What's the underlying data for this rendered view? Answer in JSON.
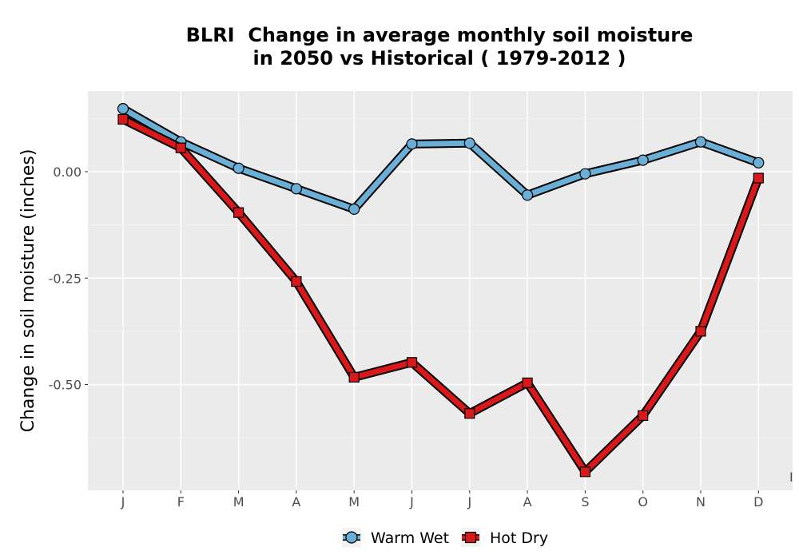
{
  "chart_data": {
    "type": "line",
    "title_line1": "BLRI  Change in average monthly soil moisture",
    "title_line2": "in 2050 vs Historical ( 1979-2012 )",
    "xlabel": "",
    "ylabel": "Change in soil moisture (inches)",
    "categories": [
      "J",
      "F",
      "M",
      "A",
      "M",
      "J",
      "J",
      "A",
      "S",
      "O",
      "N",
      "D"
    ],
    "y_ticks": [
      0.0,
      -0.25,
      -0.5
    ],
    "y_tick_labels": [
      "0.00",
      "-0.25",
      "-0.50"
    ],
    "ylim": [
      -0.75,
      0.19
    ],
    "grid": true,
    "legend_position": "bottom",
    "series": [
      {
        "name": "Warm Wet",
        "marker": "circle",
        "color": "#6baed6",
        "values": [
          0.148,
          0.07,
          0.008,
          -0.04,
          -0.088,
          0.065,
          0.067,
          -0.055,
          -0.005,
          0.027,
          0.07,
          0.021
        ]
      },
      {
        "name": "Hot Dry",
        "marker": "square",
        "color": "#d7191c",
        "values": [
          0.123,
          0.056,
          -0.096,
          -0.258,
          -0.483,
          -0.448,
          -0.568,
          -0.496,
          -0.705,
          -0.573,
          -0.375,
          -0.015
        ]
      }
    ],
    "stray_mark": "I"
  }
}
